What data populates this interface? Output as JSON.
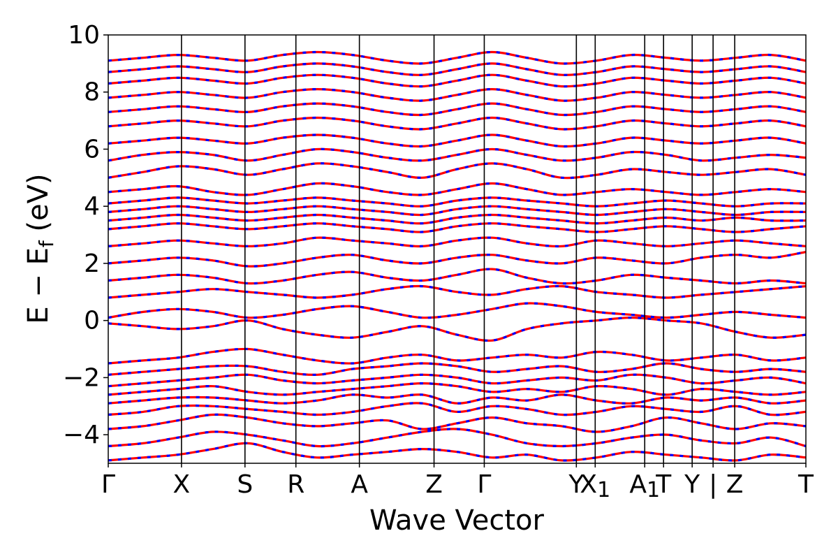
{
  "chart_data": {
    "type": "line",
    "title": "",
    "xlabel": "Wave Vector",
    "ylabel": "E − E",
    "ylabel_sub": "f",
    "ylabel_unit": " (eV)",
    "ylim": [
      -5,
      10
    ],
    "yticks": [
      {
        "value": -4,
        "label": "−4"
      },
      {
        "value": -2,
        "label": "−2"
      },
      {
        "value": 0,
        "label": "0"
      },
      {
        "value": 2,
        "label": "2"
      },
      {
        "value": 4,
        "label": "4"
      },
      {
        "value": 6,
        "label": "6"
      },
      {
        "value": 8,
        "label": "8"
      },
      {
        "value": 10,
        "label": "10"
      }
    ],
    "xlim": [
      0,
      10
    ],
    "high_symmetry_points": [
      {
        "x": 0.0,
        "label": "Γ"
      },
      {
        "x": 1.05,
        "label": "X"
      },
      {
        "x": 1.96,
        "label": "S"
      },
      {
        "x": 2.69,
        "label": "R"
      },
      {
        "x": 3.6,
        "label": "A"
      },
      {
        "x": 4.67,
        "label": "Z"
      },
      {
        "x": 5.39,
        "label": "Γ"
      },
      {
        "x": 6.71,
        "label": "Y"
      },
      {
        "x": 6.98,
        "label": "X",
        "sub": "1"
      },
      {
        "x": 7.69,
        "label": "A",
        "sub": "1"
      },
      {
        "x": 7.96,
        "label": "T"
      },
      {
        "x": 8.37,
        "label": "Y"
      },
      {
        "x": 8.67,
        "label": "|"
      },
      {
        "x": 8.98,
        "label": "Z"
      },
      {
        "x": 10.0,
        "label": "T"
      }
    ],
    "band_style": {
      "primary_color": "#ff0000",
      "overlay_color": "#0000ff",
      "overlay": "dashed"
    },
    "series": [
      {
        "values": [
          -4.9,
          -4.8,
          -4.7,
          -4.5,
          -4.3,
          -4.6,
          -4.8,
          -4.7,
          -4.6,
          -4.5,
          -4.6,
          -4.8,
          -4.7,
          -4.9,
          -4.8,
          -4.6,
          -4.7,
          -4.8,
          -4.9,
          -4.7,
          -4.8
        ]
      },
      {
        "values": [
          -4.4,
          -4.3,
          -4.1,
          -3.9,
          -4.0,
          -4.2,
          -4.4,
          -4.3,
          -4.1,
          -3.9,
          -3.8,
          -4.0,
          -4.3,
          -4.4,
          -4.3,
          -4.1,
          -4.0,
          -4.2,
          -4.3,
          -4.1,
          -4.4
        ]
      },
      {
        "values": [
          -3.8,
          -3.7,
          -3.5,
          -3.3,
          -3.4,
          -3.6,
          -3.7,
          -3.6,
          -3.5,
          -3.8,
          -3.6,
          -3.4,
          -3.6,
          -3.7,
          -3.9,
          -3.7,
          -3.4,
          -3.6,
          -3.8,
          -3.6,
          -3.7
        ]
      },
      {
        "values": [
          -3.3,
          -3.2,
          -3.0,
          -3.0,
          -3.1,
          -3.2,
          -3.3,
          -3.2,
          -3.0,
          -2.9,
          -3.2,
          -3.0,
          -3.1,
          -3.3,
          -3.2,
          -3.0,
          -3.1,
          -3.2,
          -3.0,
          -3.3,
          -3.2
        ]
      },
      {
        "values": [
          -2.9,
          -2.8,
          -2.7,
          -2.7,
          -2.8,
          -2.9,
          -2.8,
          -2.6,
          -2.7,
          -2.6,
          -2.9,
          -2.7,
          -2.8,
          -2.6,
          -2.8,
          -2.9,
          -2.7,
          -2.8,
          -2.7,
          -2.9,
          -2.8
        ]
      },
      {
        "values": [
          -2.6,
          -2.5,
          -2.4,
          -2.3,
          -2.5,
          -2.6,
          -2.5,
          -2.4,
          -2.3,
          -2.2,
          -2.3,
          -2.5,
          -2.4,
          -2.5,
          -2.3,
          -2.4,
          -2.6,
          -2.4,
          -2.5,
          -2.6,
          -2.5
        ]
      },
      {
        "values": [
          -2.3,
          -2.2,
          -2.1,
          -2.0,
          -1.9,
          -2.1,
          -2.2,
          -2.1,
          -2.0,
          -1.9,
          -2.0,
          -2.2,
          -2.1,
          -2.0,
          -2.1,
          -1.9,
          -2.0,
          -2.2,
          -2.1,
          -2.0,
          -2.2
        ]
      },
      {
        "values": [
          -1.9,
          -1.8,
          -1.7,
          -1.6,
          -1.6,
          -1.8,
          -1.9,
          -1.7,
          -1.6,
          -1.5,
          -1.6,
          -1.8,
          -1.7,
          -1.6,
          -1.8,
          -1.7,
          -1.5,
          -1.7,
          -1.8,
          -1.7,
          -1.8
        ]
      },
      {
        "values": [
          -1.5,
          -1.4,
          -1.3,
          -1.1,
          -1.0,
          -1.2,
          -1.4,
          -1.5,
          -1.3,
          -1.2,
          -1.4,
          -1.3,
          -1.2,
          -1.3,
          -1.1,
          -1.2,
          -1.4,
          -1.3,
          -1.2,
          -1.4,
          -1.3
        ]
      },
      {
        "values": [
          -0.1,
          -0.2,
          -0.3,
          -0.2,
          0.0,
          -0.3,
          -0.5,
          -0.6,
          -0.4,
          -0.2,
          -0.5,
          -0.7,
          -0.3,
          -0.1,
          0.0,
          0.1,
          0.0,
          -0.1,
          -0.4,
          -0.6,
          -0.5
        ]
      },
      {
        "values": [
          0.1,
          0.3,
          0.4,
          0.3,
          0.1,
          0.2,
          0.4,
          0.5,
          0.3,
          0.1,
          0.2,
          0.4,
          0.6,
          0.5,
          0.3,
          0.2,
          0.1,
          0.2,
          0.3,
          0.2,
          0.1
        ]
      },
      {
        "values": [
          0.8,
          0.9,
          1.0,
          1.1,
          1.0,
          0.9,
          0.8,
          0.9,
          1.1,
          1.2,
          1.0,
          0.9,
          1.1,
          1.2,
          1.0,
          0.9,
          0.8,
          0.9,
          1.0,
          1.1,
          1.2
        ]
      },
      {
        "values": [
          1.4,
          1.5,
          1.6,
          1.5,
          1.3,
          1.4,
          1.6,
          1.7,
          1.5,
          1.4,
          1.6,
          1.8,
          1.5,
          1.3,
          1.4,
          1.6,
          1.5,
          1.4,
          1.3,
          1.4,
          1.3
        ]
      },
      {
        "values": [
          2.0,
          2.1,
          2.2,
          2.1,
          1.9,
          2.0,
          2.2,
          2.3,
          2.1,
          2.0,
          2.2,
          2.3,
          2.1,
          2.0,
          2.2,
          2.1,
          2.0,
          2.2,
          2.3,
          2.2,
          2.4
        ]
      },
      {
        "values": [
          2.6,
          2.7,
          2.8,
          2.7,
          2.6,
          2.7,
          2.9,
          2.8,
          2.7,
          2.6,
          2.8,
          2.9,
          2.7,
          2.6,
          2.8,
          2.7,
          2.6,
          2.7,
          2.8,
          2.7,
          2.6
        ]
      },
      {
        "values": [
          3.2,
          3.3,
          3.4,
          3.3,
          3.2,
          3.3,
          3.4,
          3.3,
          3.2,
          3.1,
          3.3,
          3.4,
          3.3,
          3.2,
          3.1,
          3.2,
          3.3,
          3.2,
          3.1,
          3.2,
          3.3
        ]
      },
      {
        "values": [
          3.5,
          3.6,
          3.7,
          3.6,
          3.5,
          3.6,
          3.7,
          3.6,
          3.5,
          3.4,
          3.6,
          3.7,
          3.6,
          3.5,
          3.4,
          3.5,
          3.6,
          3.5,
          3.6,
          3.5,
          3.5
        ]
      },
      {
        "values": [
          3.8,
          3.9,
          4.0,
          3.9,
          3.8,
          3.9,
          4.0,
          3.9,
          3.8,
          3.7,
          3.9,
          4.0,
          3.9,
          3.8,
          3.7,
          3.8,
          3.9,
          3.8,
          3.7,
          3.8,
          3.8
        ]
      },
      {
        "values": [
          4.1,
          4.2,
          4.3,
          4.2,
          4.1,
          4.2,
          4.3,
          4.2,
          4.1,
          4.0,
          4.2,
          4.3,
          4.2,
          4.1,
          4.0,
          4.1,
          4.2,
          4.1,
          4.0,
          4.1,
          4.1
        ]
      },
      {
        "values": [
          4.5,
          4.6,
          4.7,
          4.5,
          4.4,
          4.6,
          4.8,
          4.7,
          4.5,
          4.4,
          4.6,
          4.8,
          4.6,
          4.4,
          4.5,
          4.6,
          4.5,
          4.4,
          4.5,
          4.6,
          4.5
        ]
      },
      {
        "values": [
          5.0,
          5.2,
          5.4,
          5.3,
          5.1,
          5.3,
          5.5,
          5.4,
          5.2,
          5.0,
          5.3,
          5.5,
          5.3,
          5.0,
          5.1,
          5.3,
          5.2,
          5.1,
          5.2,
          5.3,
          5.1
        ]
      },
      {
        "values": [
          5.6,
          5.8,
          5.9,
          5.8,
          5.6,
          5.8,
          6.0,
          5.9,
          5.7,
          5.6,
          5.8,
          6.0,
          5.8,
          5.6,
          5.7,
          5.9,
          5.8,
          5.6,
          5.7,
          5.8,
          5.7
        ]
      },
      {
        "values": [
          6.2,
          6.3,
          6.4,
          6.3,
          6.2,
          6.4,
          6.5,
          6.4,
          6.2,
          6.1,
          6.3,
          6.5,
          6.3,
          6.1,
          6.2,
          6.4,
          6.3,
          6.2,
          6.3,
          6.4,
          6.2
        ]
      },
      {
        "values": [
          6.8,
          6.9,
          7.0,
          6.9,
          6.8,
          7.0,
          7.1,
          7.0,
          6.8,
          6.7,
          6.9,
          7.1,
          6.9,
          6.7,
          6.8,
          7.0,
          6.9,
          6.8,
          6.9,
          7.0,
          6.8
        ]
      },
      {
        "values": [
          7.3,
          7.4,
          7.5,
          7.4,
          7.3,
          7.5,
          7.6,
          7.5,
          7.3,
          7.2,
          7.4,
          7.6,
          7.4,
          7.2,
          7.3,
          7.5,
          7.4,
          7.3,
          7.4,
          7.5,
          7.3
        ]
      },
      {
        "values": [
          7.8,
          7.9,
          8.0,
          7.9,
          7.8,
          8.0,
          8.1,
          8.0,
          7.8,
          7.7,
          7.9,
          8.1,
          7.9,
          7.7,
          7.8,
          8.0,
          7.9,
          7.8,
          7.9,
          8.0,
          7.8
        ]
      },
      {
        "values": [
          8.3,
          8.4,
          8.5,
          8.4,
          8.3,
          8.5,
          8.6,
          8.5,
          8.3,
          8.2,
          8.4,
          8.6,
          8.4,
          8.2,
          8.3,
          8.5,
          8.4,
          8.3,
          8.4,
          8.5,
          8.3
        ]
      },
      {
        "values": [
          8.7,
          8.8,
          8.9,
          8.8,
          8.7,
          8.9,
          9.0,
          8.9,
          8.7,
          8.6,
          8.8,
          9.0,
          8.8,
          8.6,
          8.7,
          8.9,
          8.8,
          8.7,
          8.8,
          8.9,
          8.7
        ]
      },
      {
        "values": [
          9.1,
          9.2,
          9.3,
          9.2,
          9.1,
          9.3,
          9.4,
          9.3,
          9.1,
          9.0,
          9.2,
          9.4,
          9.2,
          9.0,
          9.1,
          9.3,
          9.2,
          9.1,
          9.2,
          9.3,
          9.1
        ]
      }
    ]
  }
}
